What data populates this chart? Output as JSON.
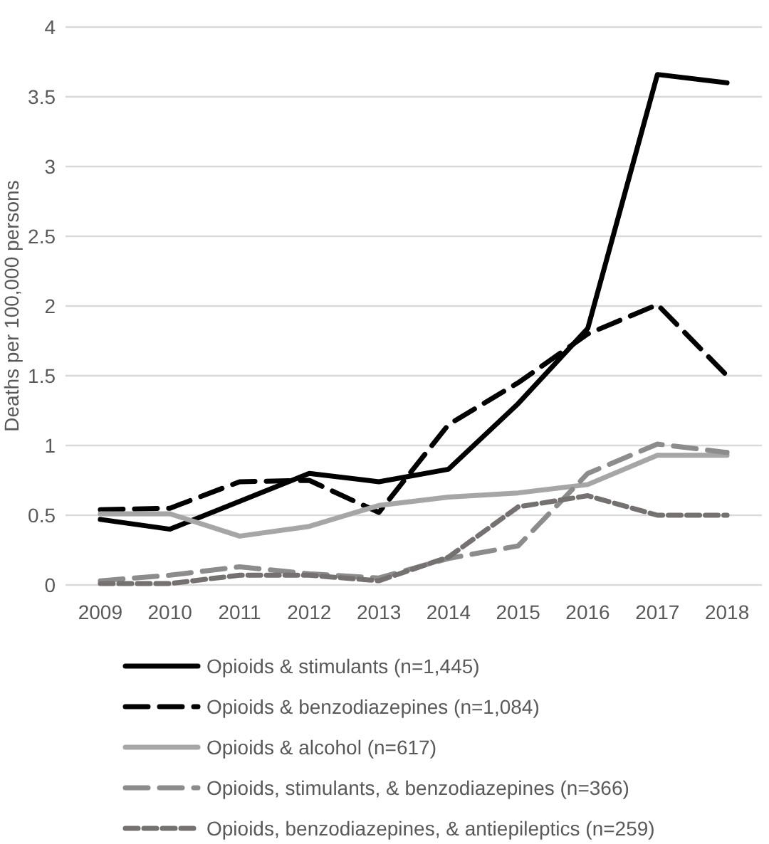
{
  "chart_data": {
    "type": "line",
    "ylabel": "Deaths per 100,000 persons",
    "categories": [
      "2009",
      "2010",
      "2011",
      "2012",
      "2013",
      "2014",
      "2015",
      "2016",
      "2017",
      "2018"
    ],
    "ylim": [
      0,
      4
    ],
    "yticks": [
      0,
      0.5,
      1,
      1.5,
      2,
      2.5,
      3,
      3.5,
      4
    ],
    "grid": "y",
    "legend": "bottom",
    "marker": "none",
    "series": [
      {
        "name": "Opioids & stimulants (n=1,445)",
        "color": "#000000",
        "line_style": "solid",
        "values": [
          0.47,
          0.4,
          0.6,
          0.8,
          0.74,
          0.83,
          1.3,
          1.84,
          3.66,
          3.6
        ]
      },
      {
        "name": "Opioids & benzodiazepines (n=1,084)",
        "color": "#000000",
        "line_style": "dashed",
        "values": [
          0.54,
          0.55,
          0.74,
          0.75,
          0.52,
          1.15,
          1.45,
          1.8,
          2.01,
          1.5
        ]
      },
      {
        "name": "Opioids & alcohol (n=617)",
        "color": "#a6a6a6",
        "line_style": "solid",
        "values": [
          0.51,
          0.51,
          0.35,
          0.42,
          0.57,
          0.63,
          0.66,
          0.72,
          0.93,
          0.93
        ]
      },
      {
        "name": "Opioids, stimulants, & benzodiazepines (n=366)",
        "color": "#8c8c8c",
        "line_style": "dashed",
        "values": [
          0.03,
          0.07,
          0.13,
          0.08,
          0.05,
          0.19,
          0.28,
          0.8,
          1.01,
          0.95
        ]
      },
      {
        "name": "Opioids, benzodiazepines, & antiepileptics (n=259)",
        "color": "#767171",
        "line_style": "dotted",
        "values": [
          0.01,
          0.01,
          0.07,
          0.07,
          0.03,
          0.2,
          0.56,
          0.64,
          0.5,
          0.5
        ]
      }
    ]
  }
}
